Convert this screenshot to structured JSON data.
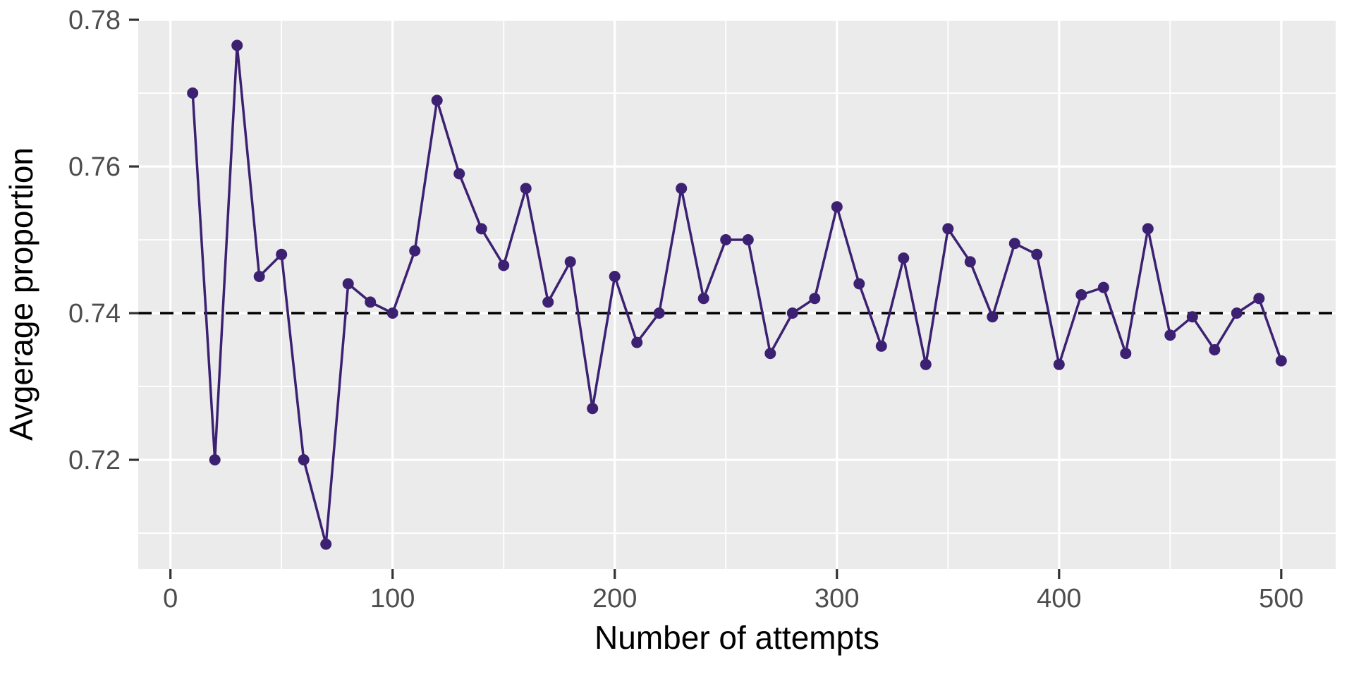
{
  "figure": {
    "background": "#FFFFFF",
    "panel_background": "#EBEBEB",
    "gridline_color": "#FFFFFF",
    "tick_color": "#333333",
    "tick_label_color": "#4D4D4D",
    "axis_title_color": "#000000"
  },
  "chart_data": {
    "type": "line",
    "title": "",
    "xlabel": "Number of attempts",
    "ylabel": "Avgerage proportion",
    "series": [
      {
        "name": "average-proportion",
        "x": [
          10,
          20,
          30,
          40,
          50,
          60,
          70,
          80,
          90,
          100,
          110,
          120,
          130,
          140,
          150,
          160,
          170,
          180,
          190,
          200,
          210,
          220,
          230,
          240,
          250,
          260,
          270,
          280,
          290,
          300,
          310,
          320,
          330,
          340,
          350,
          360,
          370,
          380,
          390,
          400,
          410,
          420,
          430,
          440,
          450,
          460,
          470,
          480,
          490,
          500
        ],
        "y": [
          0.77,
          0.72,
          0.7765,
          0.745,
          0.748,
          0.72,
          0.7085,
          0.744,
          0.7415,
          0.74,
          0.7485,
          0.769,
          0.759,
          0.7515,
          0.7465,
          0.757,
          0.7415,
          0.747,
          0.727,
          0.745,
          0.736,
          0.74,
          0.757,
          0.742,
          0.75,
          0.75,
          0.7345,
          0.74,
          0.742,
          0.7545,
          0.744,
          0.7355,
          0.7475,
          0.733,
          0.7515,
          0.747,
          0.7395,
          0.7495,
          0.748,
          0.733,
          0.7425,
          0.7435,
          0.7345,
          0.7515,
          0.737,
          0.7395,
          0.735,
          0.74,
          0.742,
          0.7335
        ]
      }
    ],
    "reference_line": {
      "y": 0.74,
      "style": "dashed",
      "color": "#000000"
    },
    "x_ticks": [
      0,
      100,
      200,
      300,
      400,
      500
    ],
    "x_tick_labels": [
      "0",
      "100",
      "200",
      "300",
      "400",
      "500"
    ],
    "y_ticks": [
      0.72,
      0.74,
      0.76,
      0.78
    ],
    "y_tick_labels": [
      "0.72",
      "0.74",
      "0.76",
      "0.78"
    ],
    "x_minor_gridlines": [
      50,
      150,
      250,
      350,
      450
    ],
    "y_minor_gridlines": [
      0.71,
      0.73,
      0.75,
      0.77
    ],
    "xlim": [
      -14.5,
      524.5
    ],
    "ylim": [
      0.7051,
      0.7801
    ],
    "grid": true,
    "legend": "none",
    "line_color": "#3C2172",
    "point_color": "#3C2172"
  }
}
